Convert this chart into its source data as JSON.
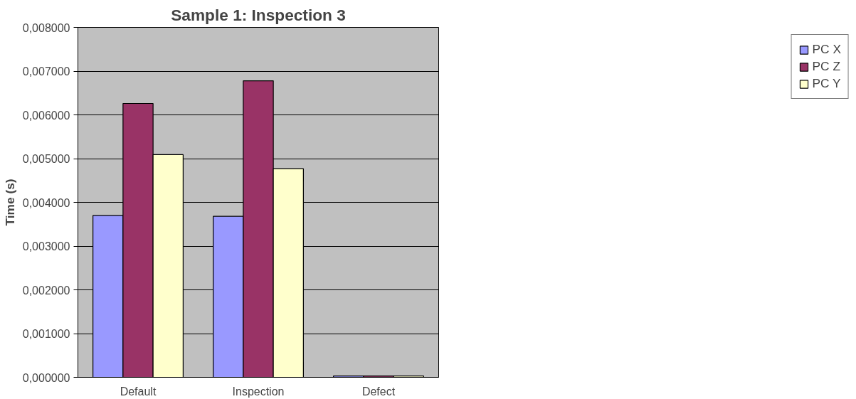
{
  "chart_data": {
    "type": "bar",
    "title": "Sample 1: Inspection 3",
    "ylabel": "Time (s)",
    "categories": [
      "Default",
      "Inspection",
      "Defect"
    ],
    "series": [
      {
        "name": "PC X",
        "color": "#9999ff",
        "values": [
          0.0037,
          0.00368,
          3e-05
        ]
      },
      {
        "name": "PC Z",
        "color": "#993366",
        "values": [
          0.00626,
          0.00678,
          3e-05
        ]
      },
      {
        "name": "PC Y",
        "color": "#ffffcc",
        "values": [
          0.00509,
          0.00477,
          3e-05
        ]
      }
    ],
    "ylim": [
      0,
      0.008
    ],
    "yticks": [
      {
        "value": 0,
        "label": "0,000000"
      },
      {
        "value": 0.001,
        "label": "0,001000"
      },
      {
        "value": 0.002,
        "label": "0,002000"
      },
      {
        "value": 0.003,
        "label": "0,003000"
      },
      {
        "value": 0.004,
        "label": "0,004000"
      },
      {
        "value": 0.005,
        "label": "0,005000"
      },
      {
        "value": 0.006,
        "label": "0,006000"
      },
      {
        "value": 0.007,
        "label": "0,007000"
      },
      {
        "value": 0.008,
        "label": "0,008000"
      }
    ],
    "grid": "y",
    "legend": "right"
  }
}
